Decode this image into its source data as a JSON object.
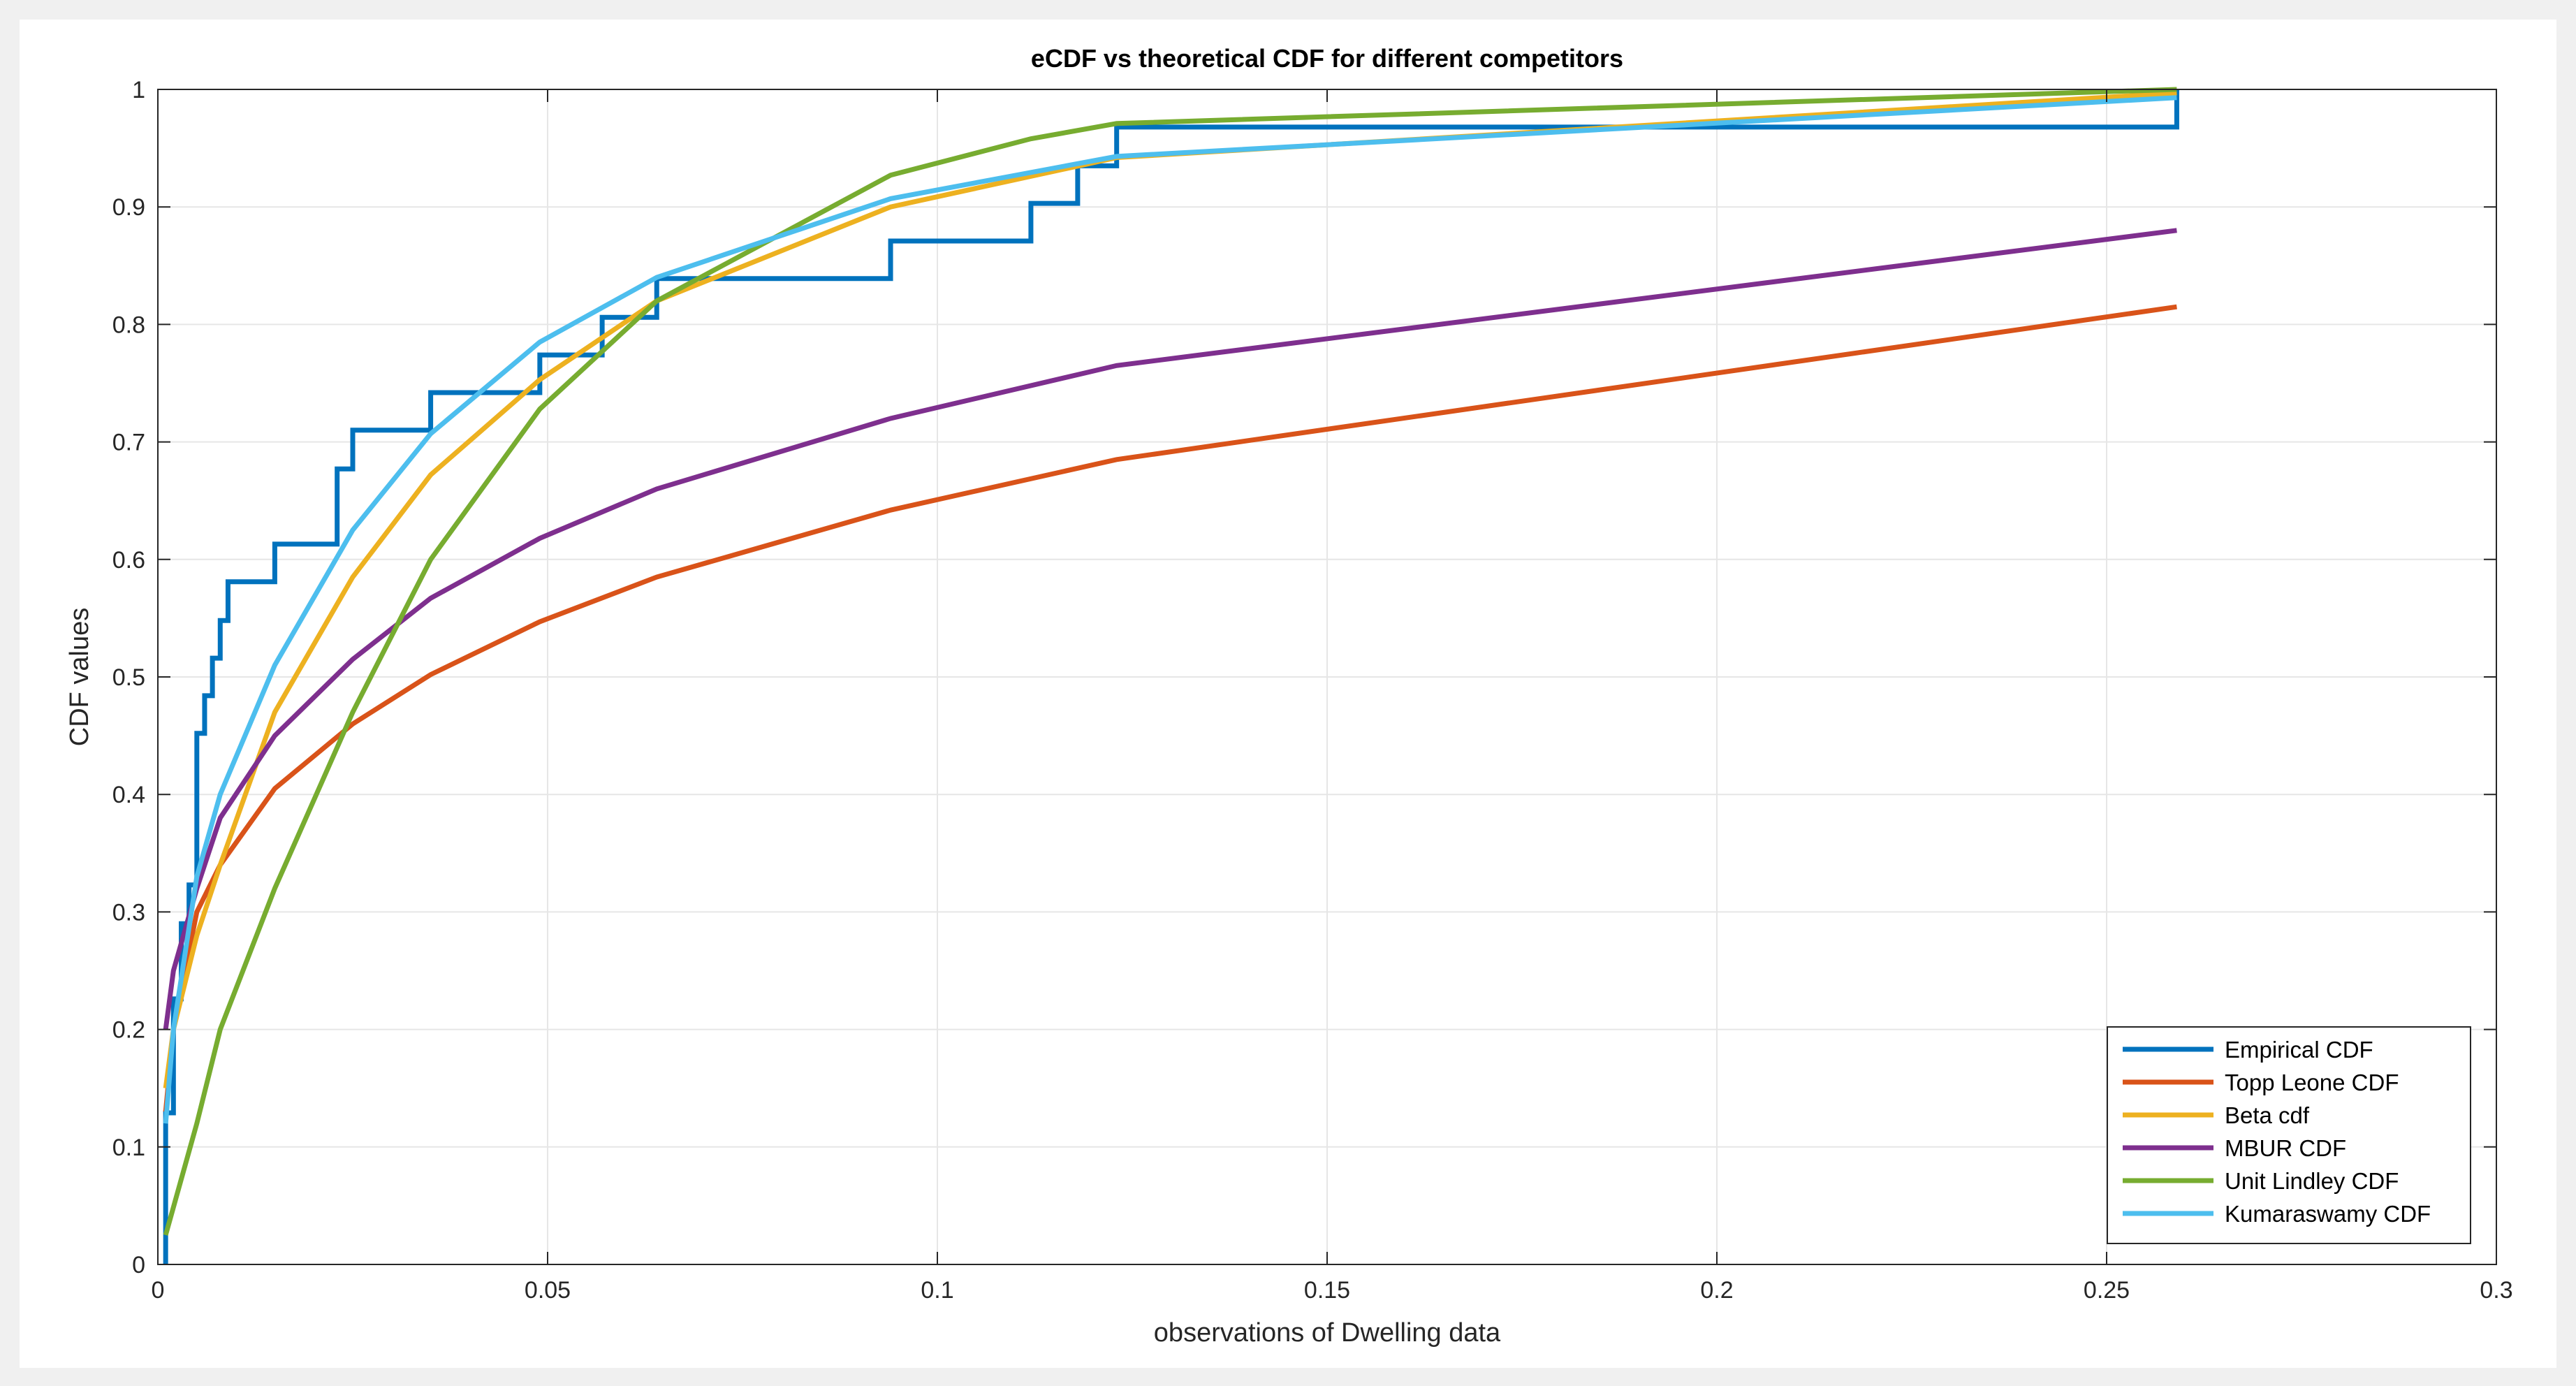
{
  "chart_data": {
    "type": "line",
    "title": "eCDF vs theoretical CDF for different competitors",
    "xlabel": "observations of Dwelling data",
    "ylabel": "CDF values",
    "xlim": [
      0,
      0.3
    ],
    "ylim": [
      0,
      1
    ],
    "grid": true,
    "legend_position": "bottom-right",
    "xticks": [
      0,
      0.05,
      0.1,
      0.15,
      0.2,
      0.25,
      0.3
    ],
    "xtick_labels": [
      "0",
      "0.05",
      "0.1",
      "0.15",
      "0.2",
      "0.25",
      "0.3"
    ],
    "yticks": [
      0,
      0.1,
      0.2,
      0.3,
      0.4,
      0.5,
      0.6,
      0.7,
      0.8,
      0.9,
      1
    ],
    "ytick_labels": [
      "0",
      "0.1",
      "0.2",
      "0.3",
      "0.4",
      "0.5",
      "0.6",
      "0.7",
      "0.8",
      "0.9",
      "1"
    ],
    "series": [
      {
        "name": "Empirical CDF",
        "color": "#0072bd",
        "step": true,
        "x": [
          0.001,
          0.001,
          0.002,
          0.003,
          0.004,
          0.005,
          0.006,
          0.007,
          0.008,
          0.009,
          0.015,
          0.023,
          0.025,
          0.035,
          0.049,
          0.057,
          0.064,
          0.094,
          0.112,
          0.118,
          0.123,
          0.259,
          0.259
        ],
        "y": [
          0,
          0.129,
          0.226,
          0.29,
          0.323,
          0.452,
          0.484,
          0.516,
          0.548,
          0.581,
          0.613,
          0.677,
          0.71,
          0.742,
          0.774,
          0.806,
          0.839,
          0.871,
          0.903,
          0.935,
          0.968,
          0.968,
          1.0
        ]
      },
      {
        "name": "Topp Leone CDF",
        "color": "#d95319",
        "x": [
          0.001,
          0.002,
          0.005,
          0.008,
          0.015,
          0.025,
          0.035,
          0.049,
          0.064,
          0.094,
          0.123,
          0.259
        ],
        "y": [
          0.13,
          0.2,
          0.3,
          0.34,
          0.405,
          0.46,
          0.502,
          0.547,
          0.585,
          0.642,
          0.685,
          0.815
        ]
      },
      {
        "name": "Beta cdf",
        "color": "#edb120",
        "x": [
          0.001,
          0.002,
          0.005,
          0.008,
          0.015,
          0.025,
          0.035,
          0.049,
          0.064,
          0.094,
          0.123,
          0.259
        ],
        "y": [
          0.15,
          0.2,
          0.28,
          0.34,
          0.47,
          0.585,
          0.672,
          0.753,
          0.82,
          0.9,
          0.942,
          0.997
        ]
      },
      {
        "name": "MBUR CDF",
        "color": "#7e2f8e",
        "x": [
          0.001,
          0.002,
          0.005,
          0.008,
          0.015,
          0.025,
          0.035,
          0.049,
          0.064,
          0.094,
          0.123,
          0.259
        ],
        "y": [
          0.2,
          0.25,
          0.32,
          0.38,
          0.45,
          0.515,
          0.567,
          0.618,
          0.66,
          0.72,
          0.765,
          0.88
        ]
      },
      {
        "name": "Unit Lindley CDF",
        "color": "#77ac30",
        "x": [
          0.001,
          0.005,
          0.008,
          0.015,
          0.025,
          0.035,
          0.049,
          0.064,
          0.094,
          0.112,
          0.123,
          0.259
        ],
        "y": [
          0.025,
          0.12,
          0.2,
          0.32,
          0.47,
          0.6,
          0.728,
          0.82,
          0.927,
          0.958,
          0.971,
          1.0
        ]
      },
      {
        "name": "Kumaraswamy CDF",
        "color": "#4dbeee",
        "x": [
          0.001,
          0.002,
          0.005,
          0.008,
          0.015,
          0.025,
          0.035,
          0.049,
          0.064,
          0.094,
          0.123,
          0.259
        ],
        "y": [
          0.12,
          0.2,
          0.33,
          0.4,
          0.51,
          0.625,
          0.707,
          0.785,
          0.84,
          0.907,
          0.943,
          0.993
        ]
      }
    ]
  }
}
